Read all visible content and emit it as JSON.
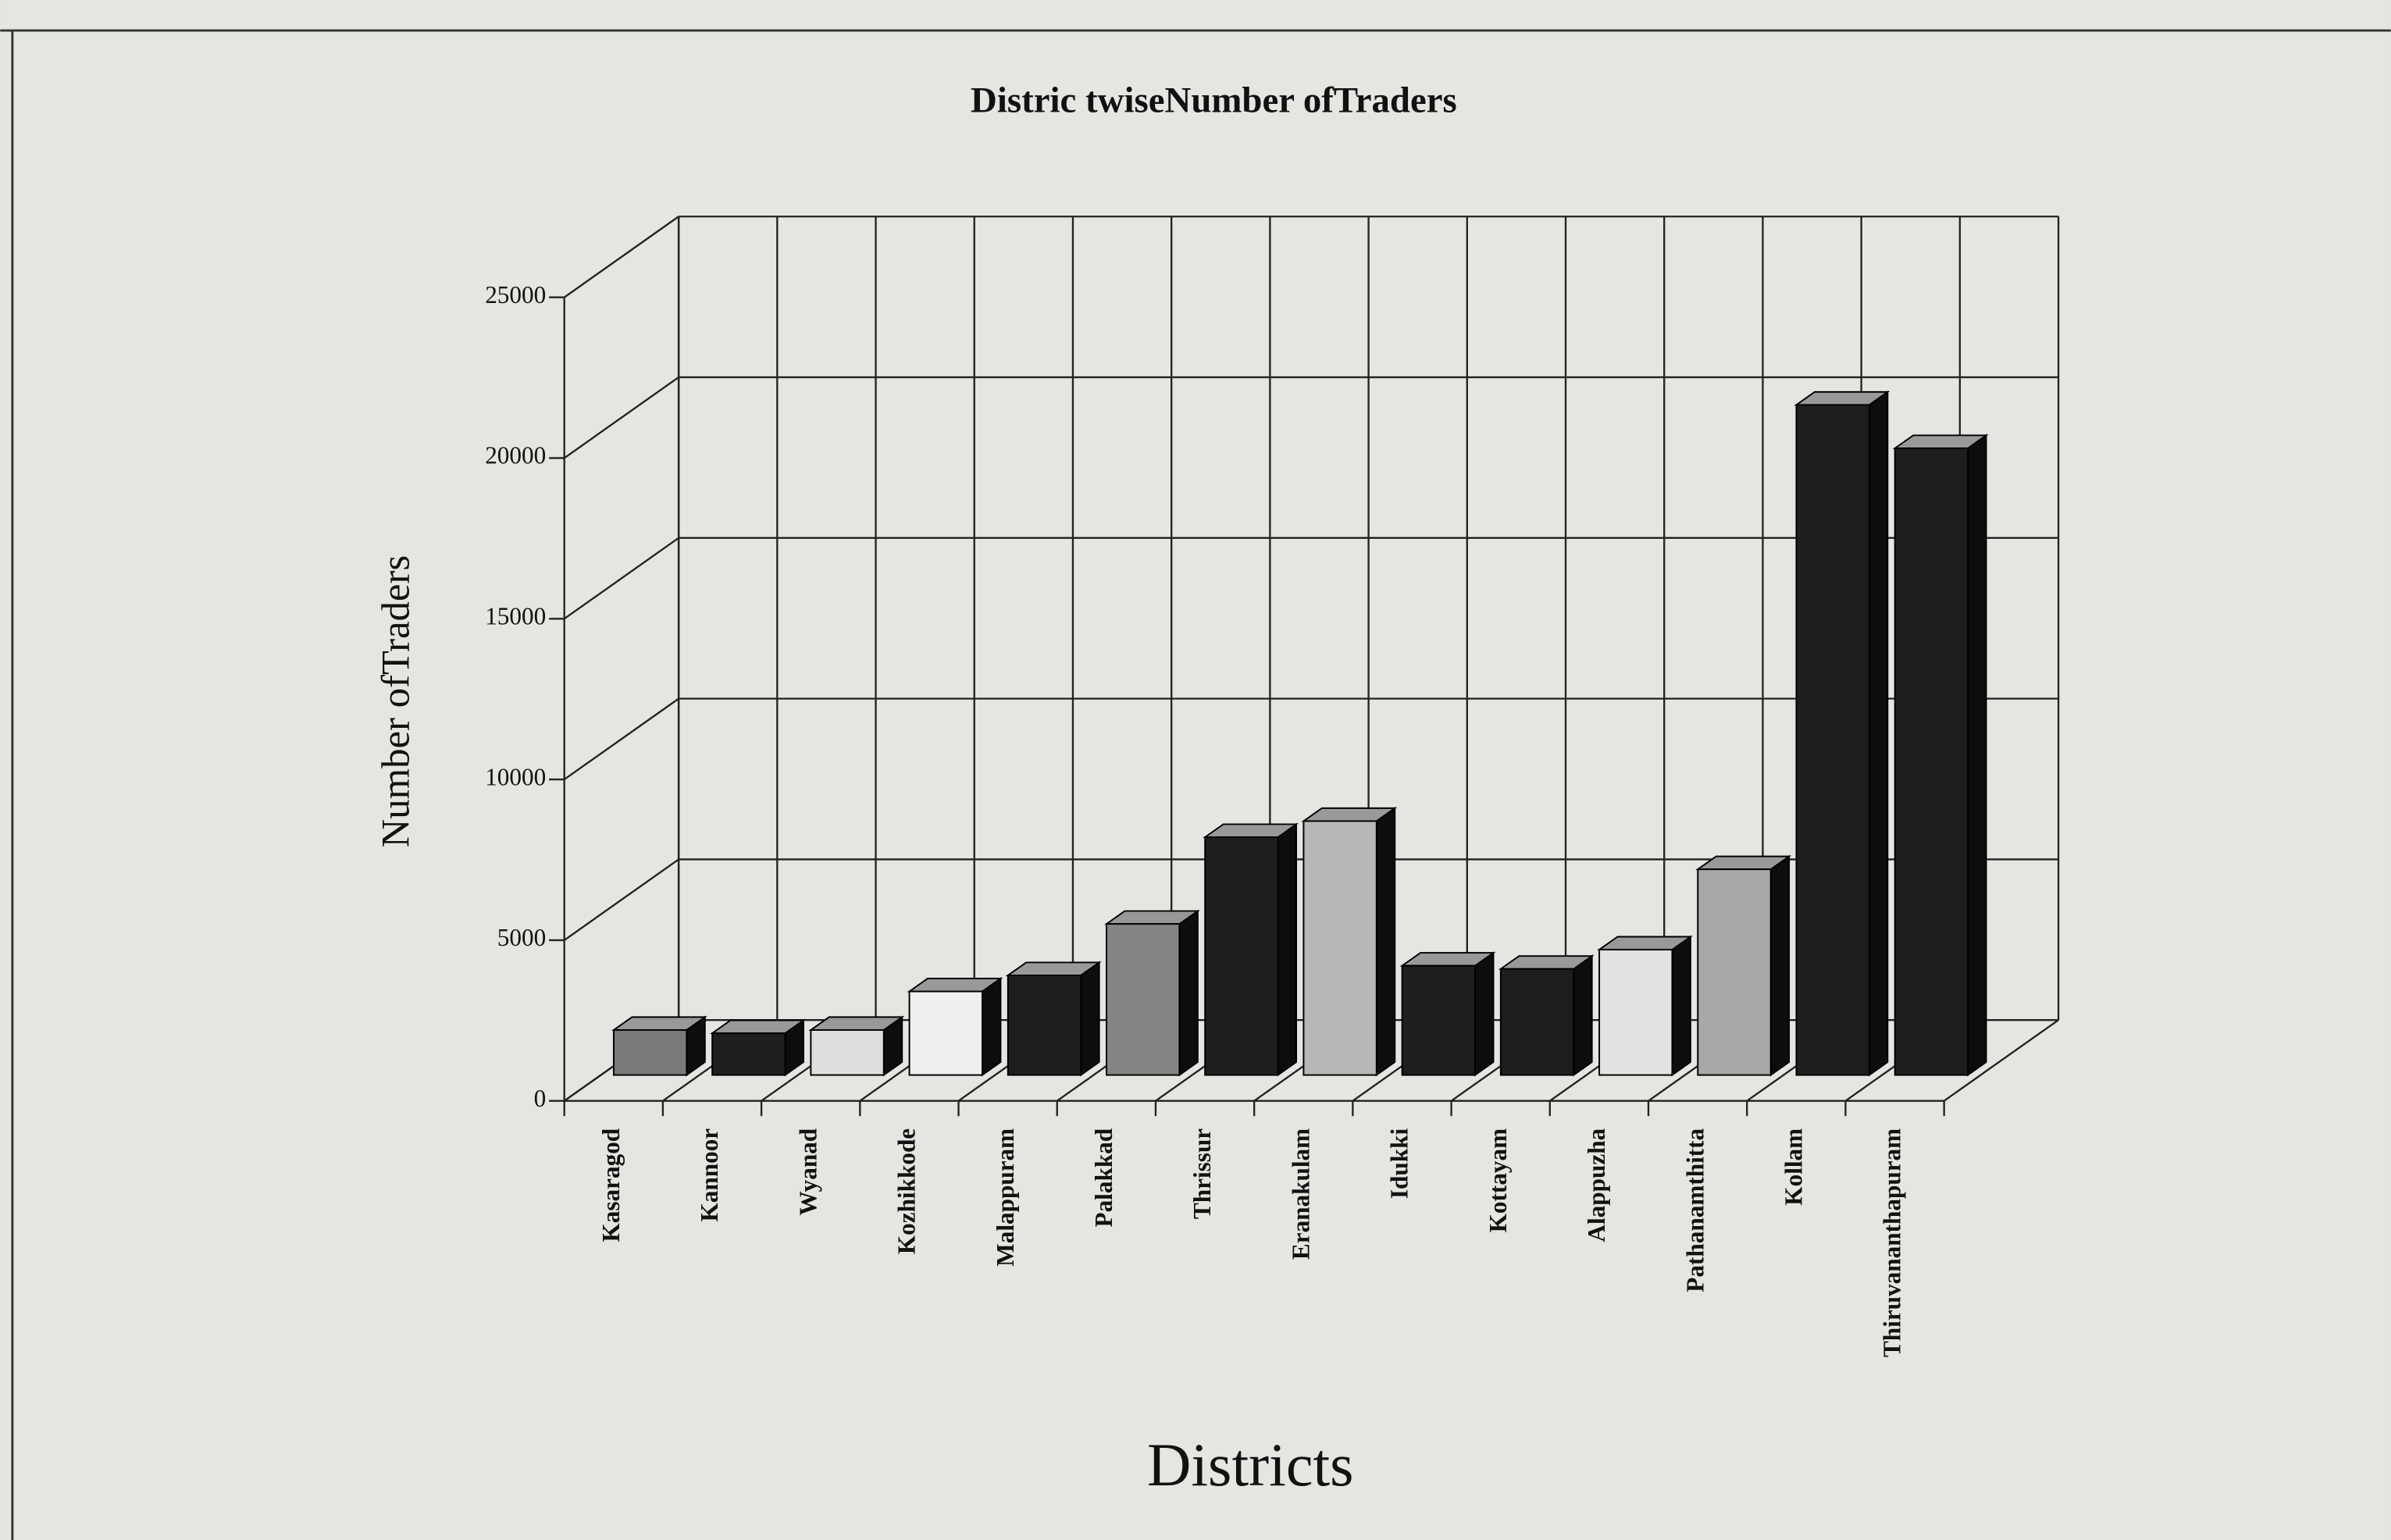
{
  "chart_data": {
    "type": "bar3d",
    "title": "Distric twiseNumber ofTraders",
    "xlabel": "Districts",
    "ylabel": "Number ofTraders",
    "categories": [
      "Kasaragod",
      "Kannoor",
      "Wyanad",
      "Kozhikkode",
      "Malappuram",
      "Palakkad",
      "Thrissur",
      "Eranakulam",
      "Idukki",
      "Kottayam",
      "Alappuzha",
      "Pathanamthitta",
      "Kollam",
      "Thiruvananthapuram"
    ],
    "values": [
      1400,
      1300,
      1400,
      2600,
      3100,
      4700,
      7400,
      7900,
      3400,
      3300,
      3900,
      6400,
      20850,
      19500
    ],
    "colors": [
      "#7a7a7a",
      "#1e1e1e",
      "#dedede",
      "#efefef",
      "#1e1e1e",
      "#858585",
      "#1e1e1e",
      "#b8b8b8",
      "#1e1e1e",
      "#1e1e1e",
      "#e2e2e2",
      "#a8a8a8",
      "#1e1e1e",
      "#1e1e1e"
    ],
    "ylim": [
      0,
      25000
    ],
    "yticks": [
      0,
      5000,
      10000,
      15000,
      20000,
      25000
    ],
    "grid": true
  }
}
